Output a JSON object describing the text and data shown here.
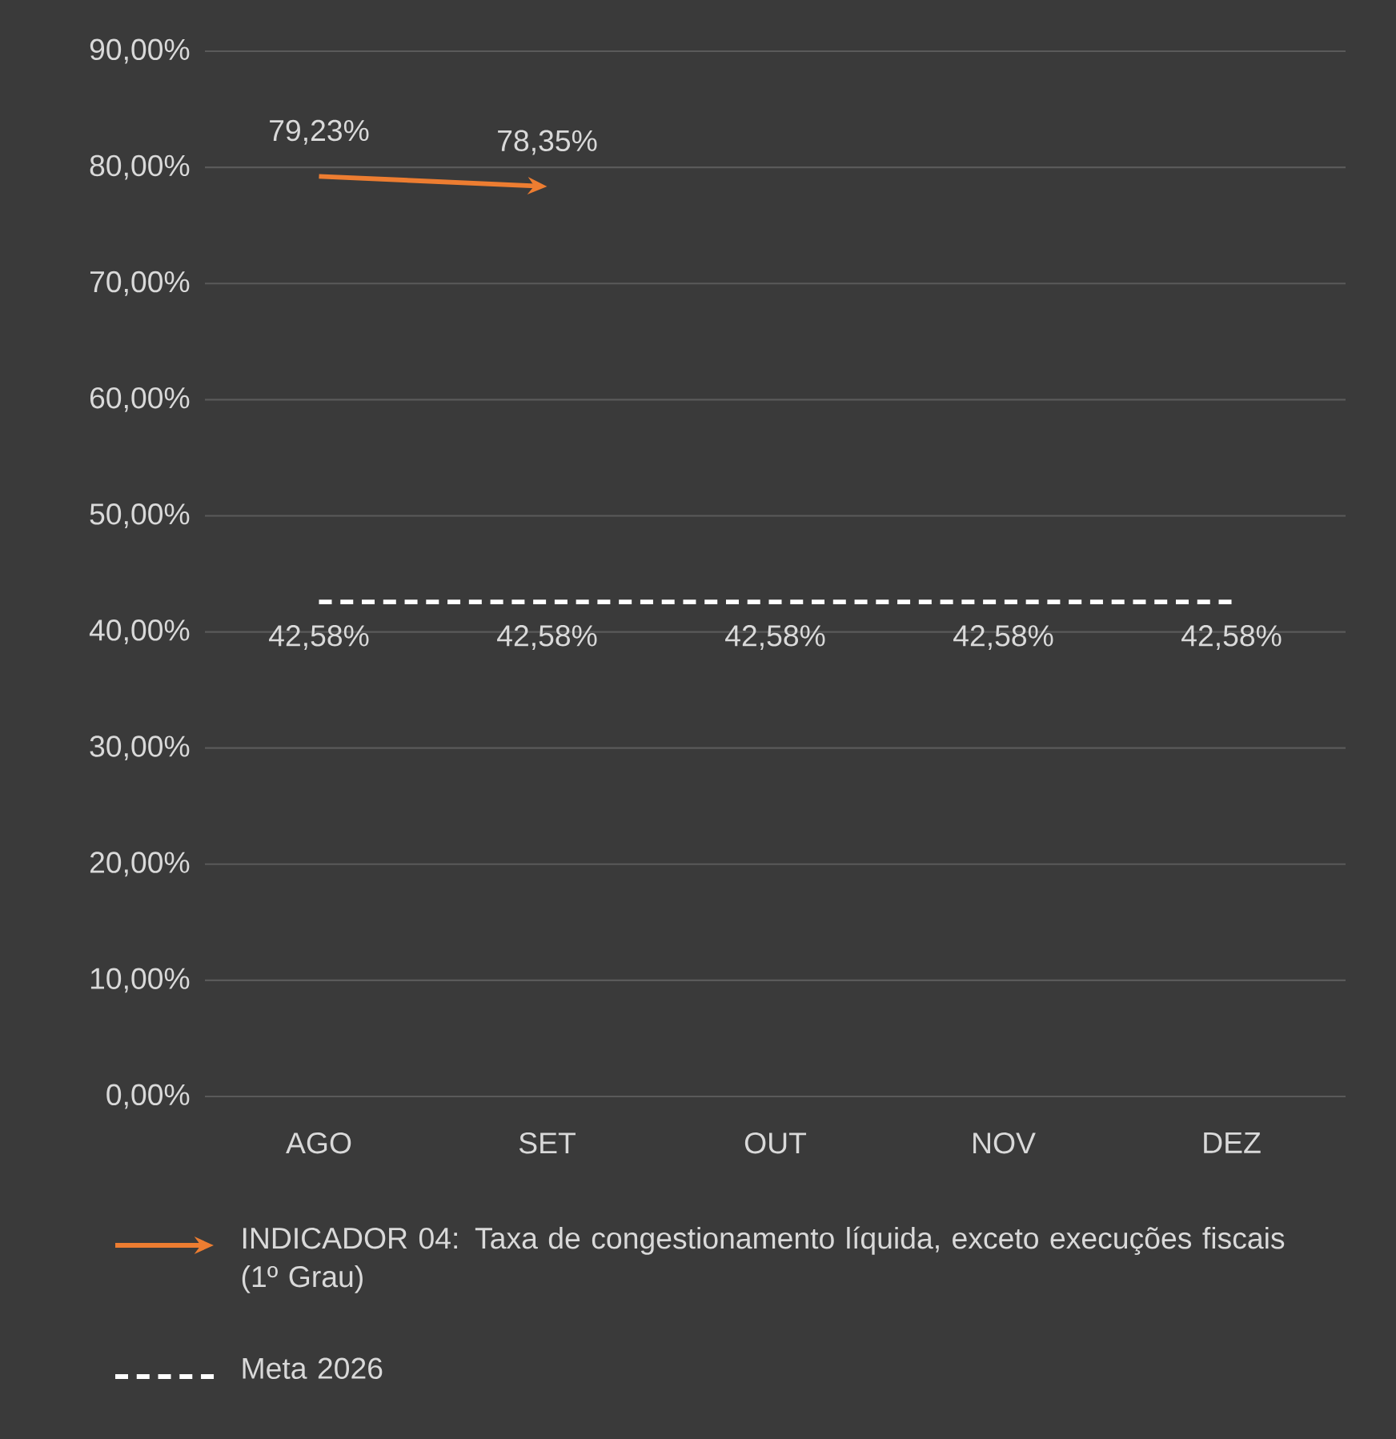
{
  "chart_data": {
    "type": "line",
    "categories": [
      "AGO",
      "SET",
      "OUT",
      "NOV",
      "DEZ"
    ],
    "ylim": [
      0,
      90
    ],
    "yticks": [
      {
        "value": 0,
        "label": "0,00%"
      },
      {
        "value": 10,
        "label": "10,00%"
      },
      {
        "value": 20,
        "label": "20,00%"
      },
      {
        "value": 30,
        "label": "30,00%"
      },
      {
        "value": 40,
        "label": "40,00%"
      },
      {
        "value": 50,
        "label": "50,00%"
      },
      {
        "value": 60,
        "label": "60,00%"
      },
      {
        "value": 70,
        "label": "70,00%"
      },
      {
        "value": 80,
        "label": "80,00%"
      },
      {
        "value": 90,
        "label": "90,00%"
      }
    ],
    "grid": "y",
    "legend": "bottom",
    "series": [
      {
        "name": "INDICADOR 04: Taxa de congestionamento líquida, exceto execuções fiscais (1º Grau)",
        "color": "#ed7d31",
        "line_style": "solid",
        "values": [
          79.23,
          78.35,
          null,
          null,
          null
        ],
        "value_labels": [
          "79,23%",
          "78,35%",
          null,
          null,
          null
        ]
      },
      {
        "name": "Meta 2026",
        "color": "#ffffff",
        "line_style": "dashed",
        "values": [
          42.58,
          42.58,
          42.58,
          42.58,
          42.58
        ],
        "value_labels": [
          "42,58%",
          "42,58%",
          "42,58%",
          "42,58%",
          "42,58%"
        ]
      }
    ]
  }
}
